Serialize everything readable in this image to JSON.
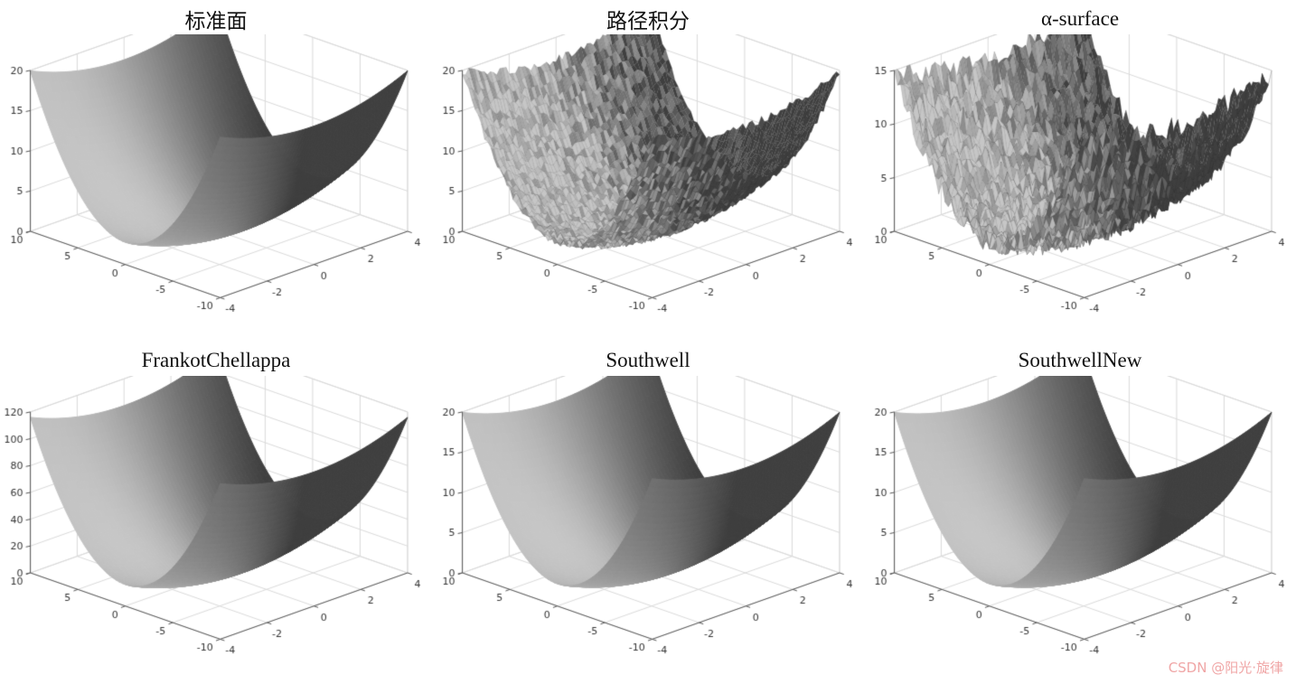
{
  "watermark": "CSDN @阳光·旋律",
  "style": {
    "background": "#ffffff",
    "surface_light": "#c6c6c6",
    "surface_dark": "#3f3f3f",
    "grid_color": "#d9d9d9",
    "axis_color": "#555555",
    "label_color": "#333333",
    "title_color": "#111111",
    "watermark_color": "#f0a6a6",
    "colormap": "gray"
  },
  "chart_data": [
    {
      "type": "surface3d",
      "title": "标准面",
      "z_formula": "z = k*(x^2 + y^2)",
      "k": 0.172,
      "noise_amp": 0,
      "x_range": [
        -4,
        4
      ],
      "y_range": [
        -10,
        10
      ],
      "z_range": [
        0,
        20
      ],
      "x_ticks": [
        -4,
        -2,
        0,
        2,
        4
      ],
      "y_ticks": [
        -10,
        -5,
        0,
        5,
        10
      ],
      "z_ticks": [
        0,
        5,
        10,
        15,
        20
      ]
    },
    {
      "type": "surface3d",
      "title": "路径积分",
      "z_formula": "z = k*(x^2 + y^2) + noise",
      "k": 0.172,
      "noise_amp": 0.5,
      "x_range": [
        -4,
        4
      ],
      "y_range": [
        -10,
        10
      ],
      "z_range": [
        0,
        20
      ],
      "x_ticks": [
        -4,
        -2,
        0,
        2,
        4
      ],
      "y_ticks": [
        -10,
        -5,
        0,
        5,
        10
      ],
      "z_ticks": [
        0,
        5,
        10,
        15,
        20
      ]
    },
    {
      "type": "surface3d",
      "title": "α-surface",
      "z_formula": "z = k*(x^2 + y^2) + noise",
      "k": 0.129,
      "noise_amp": 1.0,
      "x_range": [
        -4,
        4
      ],
      "y_range": [
        -10,
        10
      ],
      "z_range": [
        0,
        15
      ],
      "x_ticks": [
        -4,
        -2,
        0,
        2,
        4
      ],
      "y_ticks": [
        -10,
        -5,
        0,
        5,
        10
      ],
      "z_ticks": [
        0,
        5,
        10,
        15
      ]
    },
    {
      "type": "surface3d",
      "title": "FrankotChellappa",
      "z_formula": "z = k*(x^2 + y^2)",
      "k": 1,
      "noise_amp": 0,
      "x_range": [
        -4,
        4
      ],
      "y_range": [
        -10,
        10
      ],
      "z_range": [
        0,
        120
      ],
      "x_ticks": [
        -4,
        -2,
        0,
        2,
        4
      ],
      "y_ticks": [
        -10,
        -5,
        0,
        5,
        10
      ],
      "z_ticks": [
        0,
        20,
        40,
        60,
        80,
        100,
        120
      ]
    },
    {
      "type": "surface3d",
      "title": "Southwell",
      "z_formula": "z = k*(x^2 + y^2)",
      "k": 0.172,
      "noise_amp": 0,
      "x_range": [
        -4,
        4
      ],
      "y_range": [
        -10,
        10
      ],
      "z_range": [
        0,
        20
      ],
      "x_ticks": [
        -4,
        -2,
        0,
        2,
        4
      ],
      "y_ticks": [
        -10,
        -5,
        0,
        5,
        10
      ],
      "z_ticks": [
        0,
        5,
        10,
        15,
        20
      ]
    },
    {
      "type": "surface3d",
      "title": "SouthwellNew",
      "z_formula": "z = k*(x^2 + y^2)",
      "k": 0.172,
      "noise_amp": 0,
      "x_range": [
        -4,
        4
      ],
      "y_range": [
        -10,
        10
      ],
      "z_range": [
        0,
        20
      ],
      "x_ticks": [
        -4,
        -2,
        0,
        2,
        4
      ],
      "y_ticks": [
        -10,
        -5,
        0,
        5,
        10
      ],
      "z_ticks": [
        0,
        5,
        10,
        15,
        20
      ]
    }
  ]
}
